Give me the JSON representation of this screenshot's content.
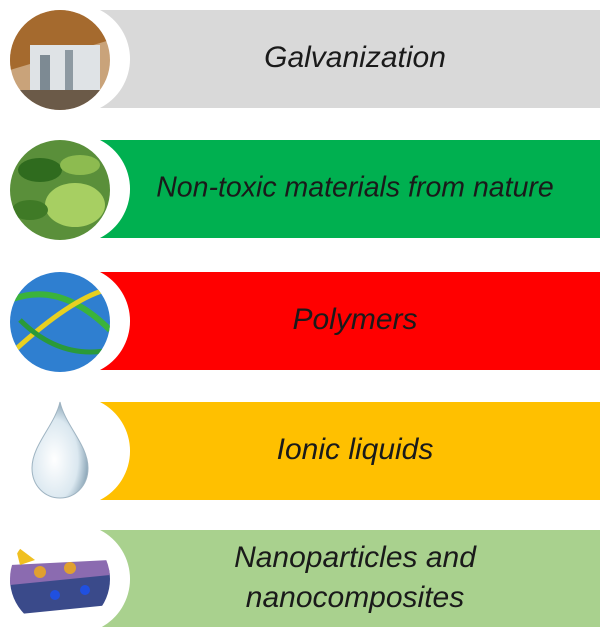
{
  "items": [
    {
      "lines": [
        "Galvanization"
      ],
      "color": "#d9d9d9"
    },
    {
      "lines": [
        "Non-toxic materials from nature"
      ],
      "color": "#00b050"
    },
    {
      "lines": [
        "Polymers"
      ],
      "color": "#ff0000"
    },
    {
      "lines": [
        "Ionic liquids"
      ],
      "color": "#ffc000"
    },
    {
      "lines": [
        "Nanoparticles and",
        "nanocomposites"
      ],
      "color": "#a9d18e"
    }
  ]
}
